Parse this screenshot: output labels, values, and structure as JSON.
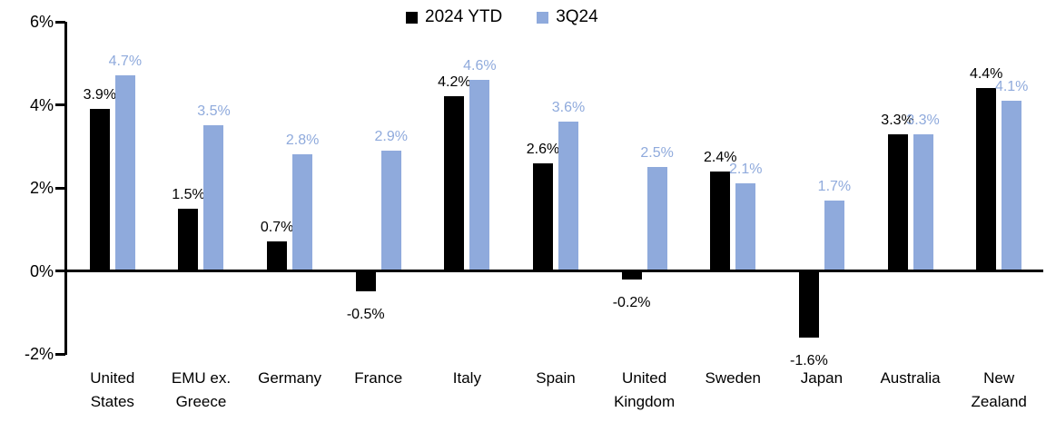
{
  "chart_data": {
    "type": "bar",
    "title": "",
    "categories": [
      "United\nStates",
      "EMU ex.\nGreece",
      "Germany",
      "France",
      "Italy",
      "Spain",
      "United\nKingdom",
      "Sweden",
      "Japan",
      "Australia",
      "New\nZealand"
    ],
    "series": [
      {
        "name": "2024 YTD",
        "color": "#000000",
        "values": [
          3.9,
          1.5,
          0.7,
          -0.5,
          4.2,
          2.6,
          -0.2,
          2.4,
          -1.6,
          3.3,
          4.4
        ],
        "labels": [
          "3.9%",
          "1.5%",
          "0.7%",
          "-0.5%",
          "4.2%",
          "2.6%",
          "-0.2%",
          "2.4%",
          "-1.6%",
          "3.3%",
          "4.4%"
        ]
      },
      {
        "name": "3Q24",
        "color": "#8FAADC",
        "values": [
          4.7,
          3.5,
          2.8,
          2.9,
          4.6,
          3.6,
          2.5,
          2.1,
          1.7,
          3.3,
          4.1
        ],
        "labels": [
          "4.7%",
          "3.5%",
          "2.8%",
          "2.9%",
          "4.6%",
          "3.6%",
          "2.5%",
          "2.1%",
          "1.7%",
          "3.3%",
          "4.1%"
        ]
      }
    ],
    "ylim": [
      -2,
      6
    ],
    "yticks": [
      6,
      4,
      2,
      0,
      -2
    ],
    "ytick_labels": [
      "6%",
      "4%",
      "2%",
      "0%",
      "-2%"
    ],
    "axis_color": "#000000",
    "grid": false,
    "legend_position": "top-center"
  }
}
